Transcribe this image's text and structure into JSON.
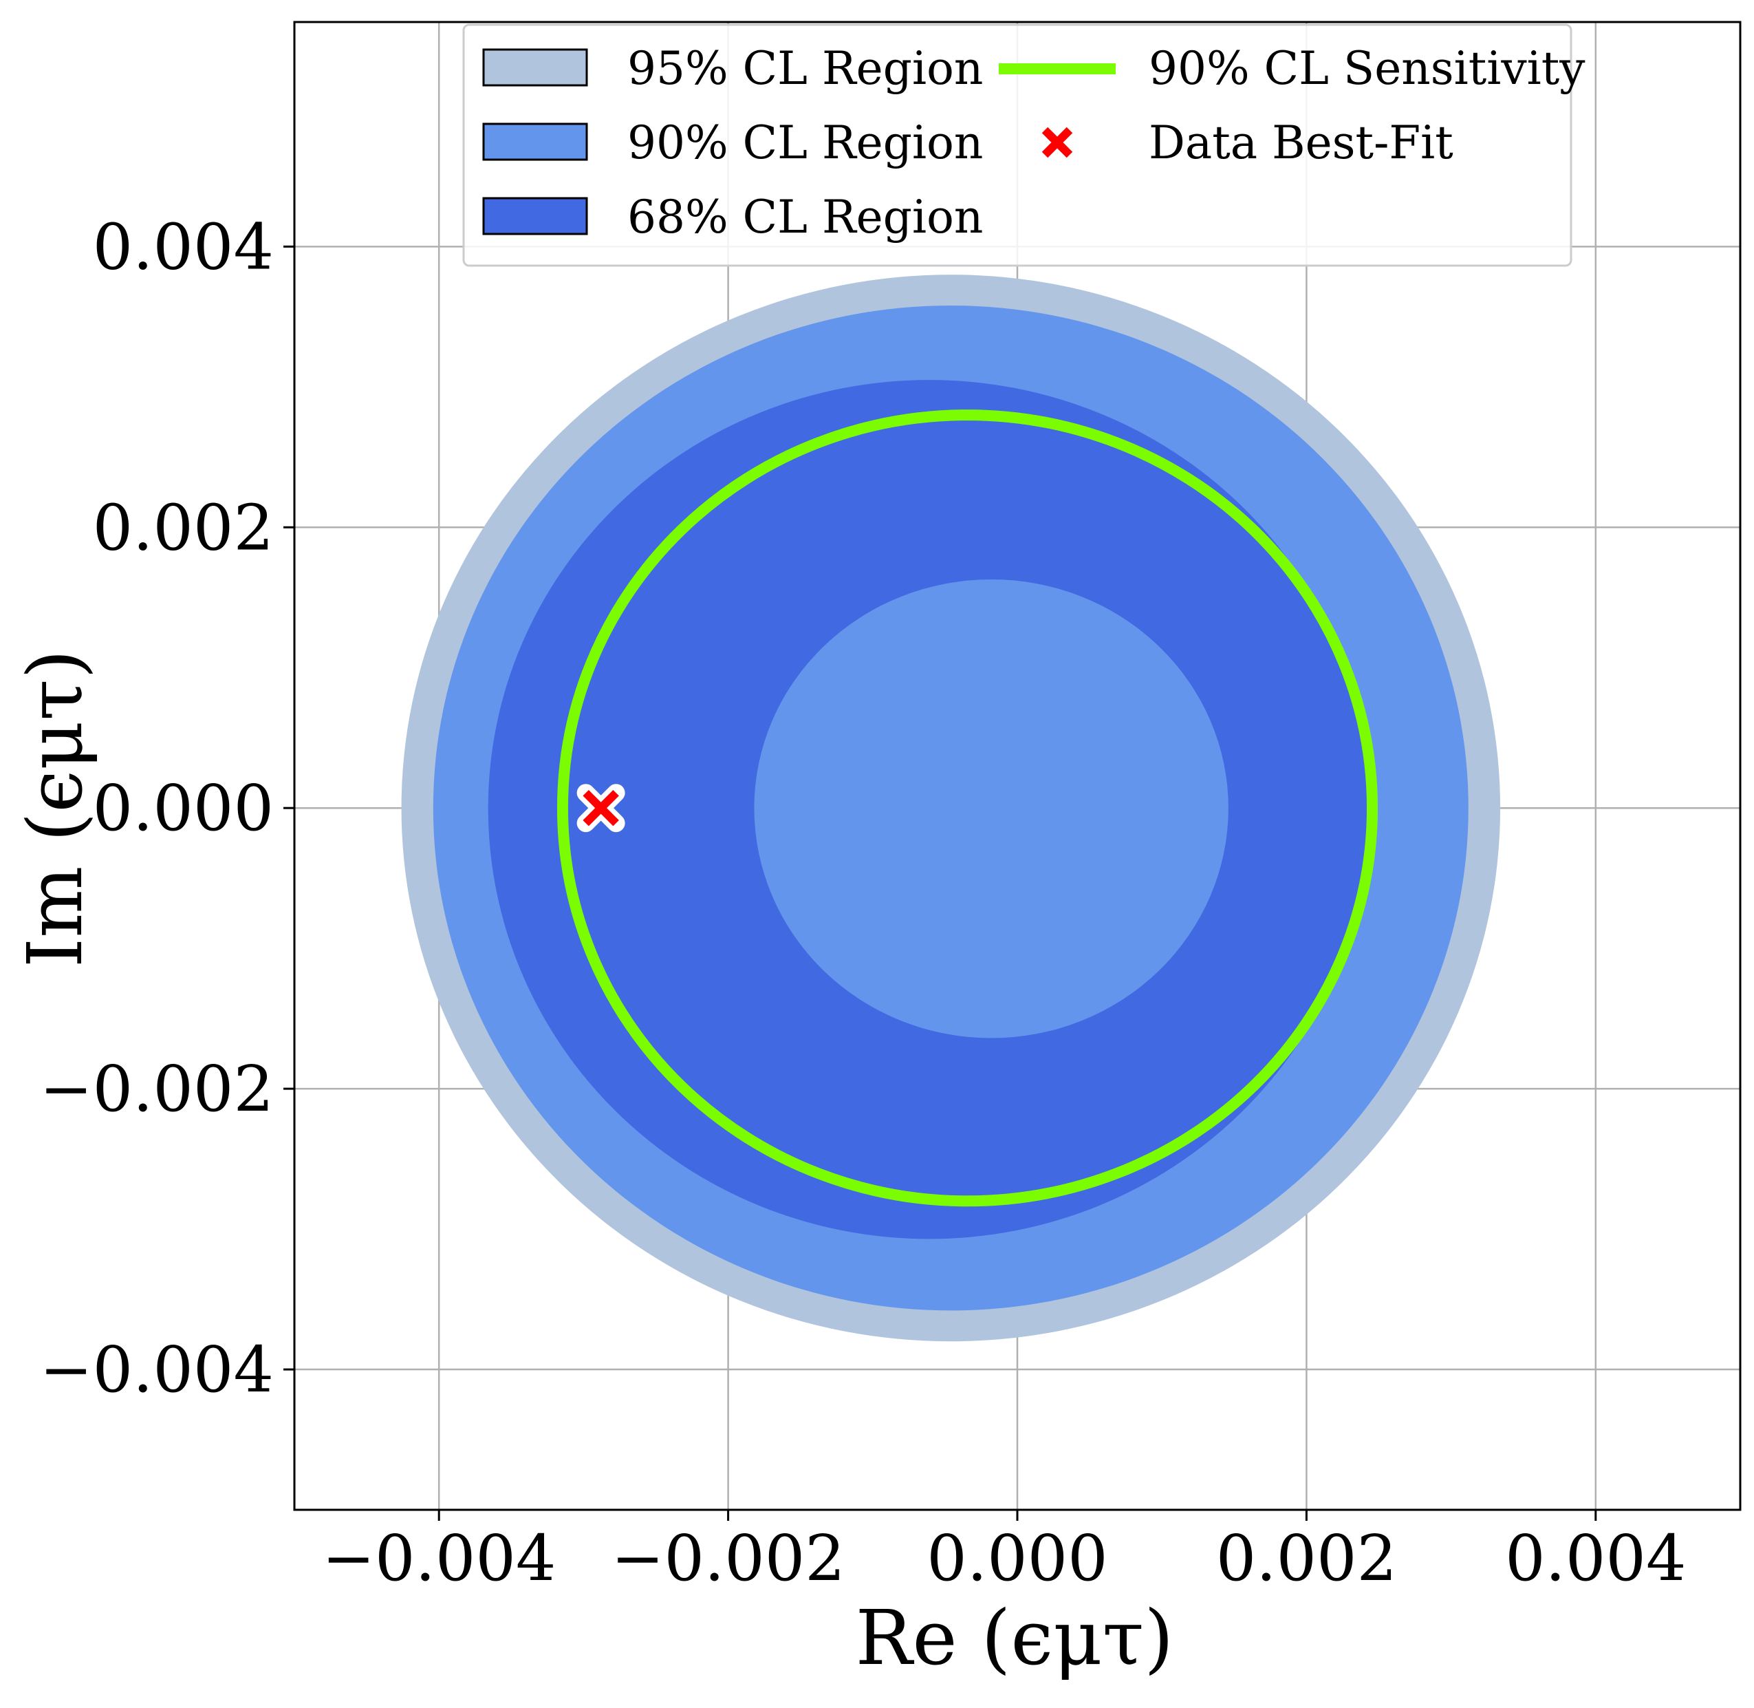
{
  "chart_data": {
    "type": "contour",
    "xlabel": "Re (ϵμτ)",
    "ylabel": "Im (ϵμτ)",
    "xlim": [
      -0.005,
      0.005
    ],
    "ylim": [
      -0.005,
      0.0056
    ],
    "xticks": [
      -0.004,
      -0.002,
      0.0,
      0.002,
      0.004
    ],
    "xtick_labels": [
      "−0.004",
      "−0.002",
      "0.000",
      "0.002",
      "0.004"
    ],
    "yticks": [
      -0.004,
      -0.002,
      0.0,
      0.002,
      0.004
    ],
    "ytick_labels": [
      "−0.004",
      "−0.002",
      "0.000",
      "0.002",
      "0.004"
    ],
    "grid": true,
    "legend_position": "top",
    "regions": [
      {
        "name": "95% CL Region",
        "color": "#b0c4de",
        "cx": -0.00046,
        "cy": 0.0,
        "rx": 0.0038,
        "ry_top": 0.0038,
        "ry_bottom": 0.0038
      },
      {
        "name": "90% CL Region",
        "color": "#6495ed",
        "cx": -0.00046,
        "cy": 0.0,
        "rx": 0.00358,
        "ry_top": 0.00358,
        "ry_bottom": 0.00358
      },
      {
        "name": "68% CL Region",
        "color": "#4169e1",
        "cx": -0.00061,
        "cy": 0.0,
        "rx": 0.00305,
        "ry_top": 0.00305,
        "ry_bottom": 0.00307
      }
    ],
    "inner_hole": {
      "cx": -0.00018,
      "cy": 0.0,
      "rx": 0.00164,
      "ry_top": 0.00163,
      "ry_bottom": 0.00164,
      "color": "#6495ed"
    },
    "sensitivity": {
      "name": "90% CL Sensitivity",
      "color": "#7cfc00",
      "cx": -0.000345,
      "cy": 0.0,
      "rx": 0.0028,
      "ry": 0.0028
    },
    "best_fit": {
      "name": "Data Best-Fit",
      "x": -0.00288,
      "y": 0.0,
      "color": "#ff0000"
    }
  }
}
